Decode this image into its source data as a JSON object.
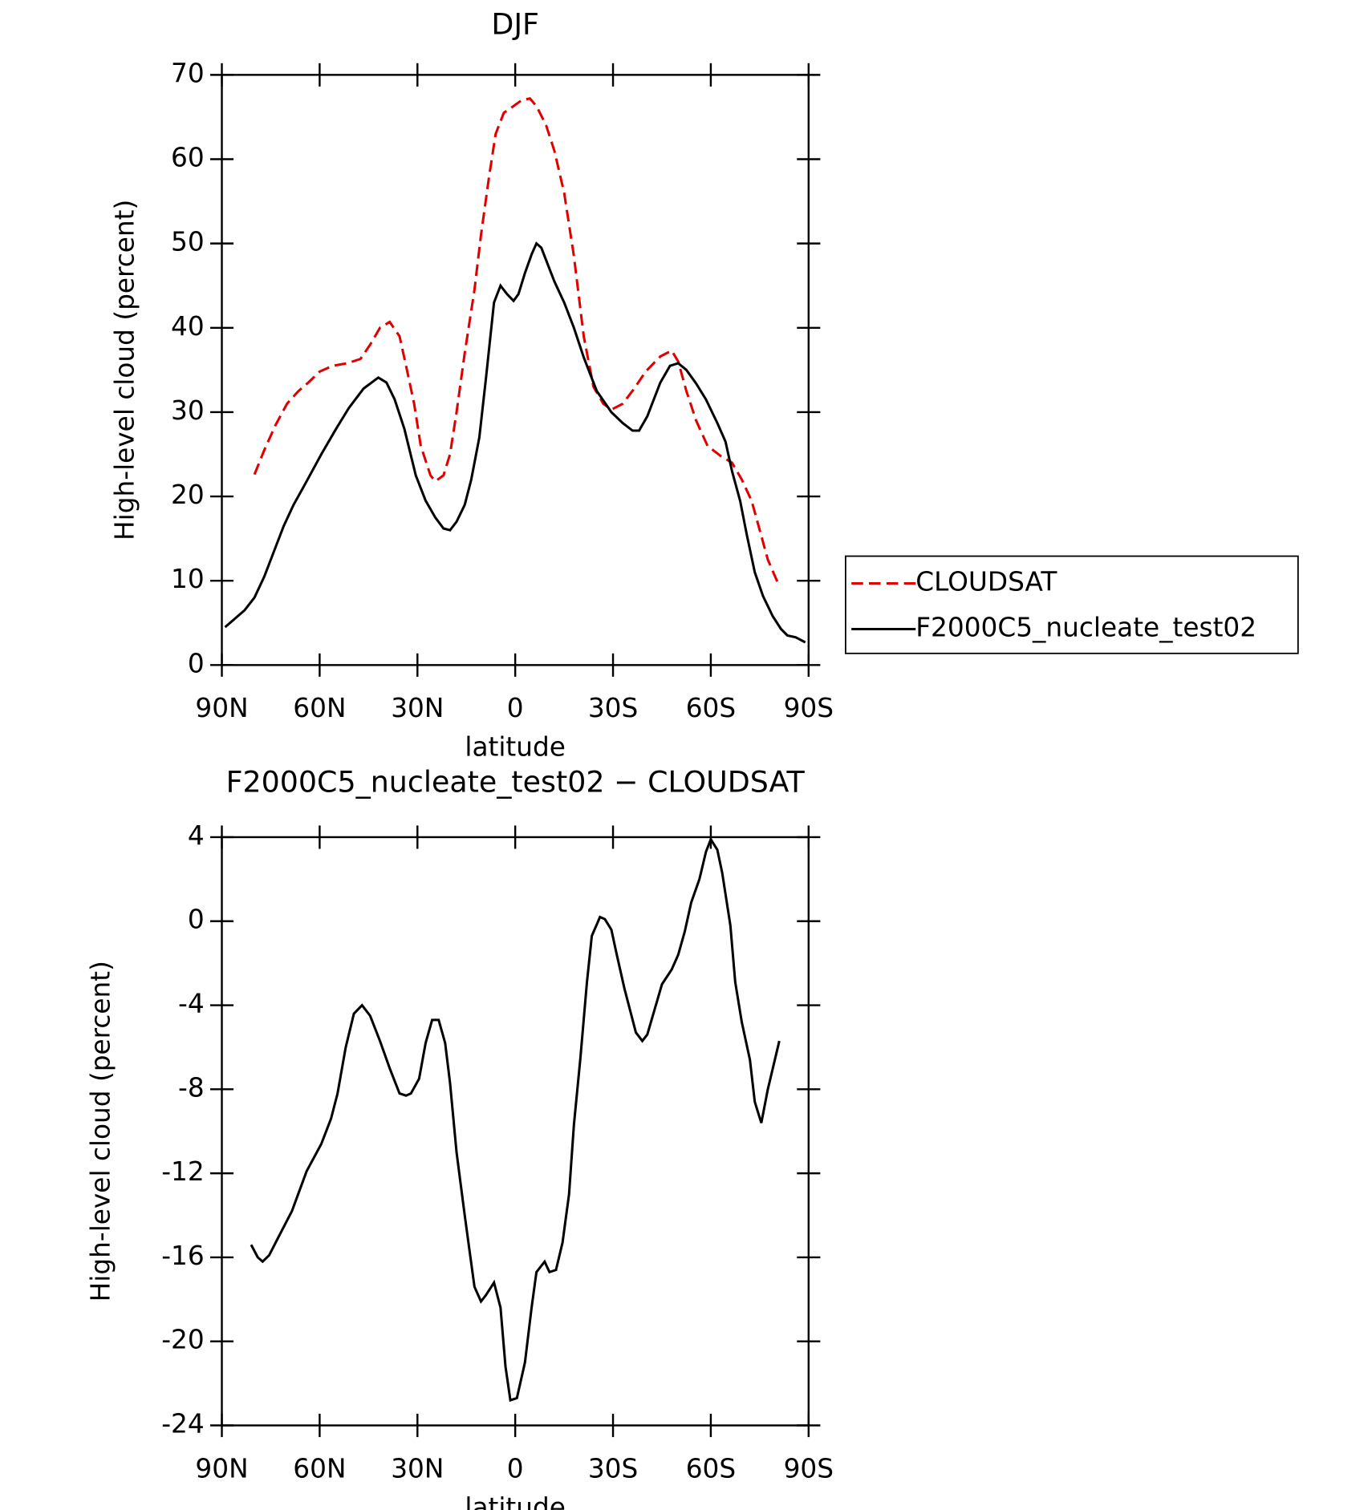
{
  "chart_data": [
    {
      "type": "line",
      "title": "DJF",
      "x_label": "latitude",
      "y_label": "High-level cloud (percent)",
      "xlim": [
        90,
        -90
      ],
      "xticks": [
        {
          "value": 90,
          "label": "90N"
        },
        {
          "value": 60,
          "label": "60N"
        },
        {
          "value": 30,
          "label": "30N"
        },
        0,
        {
          "value": -30,
          "label": "30S"
        },
        {
          "value": -60,
          "label": "60S"
        },
        {
          "value": -90,
          "label": "90S"
        }
      ],
      "ylim": [
        0,
        70
      ],
      "yticks": [
        0,
        10,
        20,
        30,
        40,
        50,
        60,
        70
      ],
      "legend": "right",
      "series": [
        {
          "name": "CLOUDSAT",
          "color": "#e00000",
          "dash": true,
          "x": [
            80,
            77,
            73.5,
            70,
            66.5,
            63.5,
            60,
            56,
            51.5,
            47.5,
            44.5,
            41.5,
            38.5,
            35.5,
            33.5,
            31,
            29,
            26,
            24.5,
            22,
            20,
            18,
            15.5,
            12.5,
            10.5,
            8,
            6,
            3.5,
            0.5,
            -2,
            -4.5,
            -6.5,
            -9.5,
            -12,
            -15,
            -18,
            -21,
            -24,
            -27,
            -29.5,
            -33,
            -36.5,
            -40,
            -44.5,
            -48,
            -50,
            -52.5,
            -55.5,
            -59,
            -63,
            -66.5,
            -69.5,
            -72.5,
            -75,
            -77.5,
            -80.5
          ],
          "values": [
            22.6,
            25.5,
            28.5,
            31,
            32.5,
            33.5,
            34.8,
            35.5,
            35.8,
            36.3,
            38,
            40,
            40.7,
            39,
            35.5,
            31,
            26,
            22.5,
            21.8,
            22.5,
            25,
            30,
            37,
            44.5,
            51,
            58,
            63,
            65.5,
            66.3,
            67,
            67.2,
            66.3,
            64,
            61,
            56,
            48.5,
            39,
            33,
            31,
            30.3,
            31,
            32.8,
            34.8,
            36.6,
            37.3,
            36,
            32.5,
            29,
            26,
            24.8,
            24,
            22,
            19.5,
            16,
            12.5,
            9.8
          ]
        },
        {
          "name": "F2000C5_nucleate_test02",
          "color": "#000000",
          "dash": false,
          "x": [
            89,
            86,
            83,
            80,
            77,
            74,
            71,
            68,
            64,
            59.5,
            55,
            51,
            46.5,
            42,
            39.5,
            37,
            34,
            30.5,
            27.5,
            24.5,
            22,
            20,
            18,
            15.5,
            13.5,
            11,
            9,
            6.5,
            4.5,
            2.5,
            0.5,
            -1,
            -3,
            -5,
            -6.5,
            -8,
            -10,
            -12,
            -15,
            -18,
            -21,
            -25,
            -29.5,
            -33,
            -36,
            -38,
            -40.5,
            -44.5,
            -47.5,
            -50,
            -52.5,
            -55.5,
            -58.5,
            -62,
            -64.5,
            -66.5,
            -69,
            -71,
            -73.5,
            -76,
            -79,
            -81.5,
            -83.5,
            -86,
            -89
          ],
          "values": [
            4.5,
            5.5,
            6.5,
            8,
            10.5,
            13.5,
            16.5,
            19,
            21.8,
            25,
            28,
            30.5,
            32.8,
            34.1,
            33.5,
            31.5,
            28,
            22.5,
            19.5,
            17.5,
            16.2,
            16,
            17,
            19,
            22,
            27,
            34,
            43,
            45,
            44,
            43.2,
            44,
            46.5,
            48.7,
            50,
            49.5,
            47.5,
            45.5,
            43,
            40,
            36.5,
            32.5,
            30,
            28.7,
            27.8,
            27.8,
            29.5,
            33.5,
            35.5,
            35.8,
            35,
            33.4,
            31.5,
            28.7,
            26.5,
            23,
            19.5,
            15.5,
            11,
            8.2,
            5.8,
            4.3,
            3.5,
            3.3,
            2.7
          ]
        }
      ]
    },
    {
      "type": "line",
      "title": "F2000C5_nucleate_test02 − CLOUDSAT",
      "x_label": "latitude",
      "y_label": "High-level cloud (percent)",
      "xlim": [
        90,
        -90
      ],
      "xticks": [
        {
          "value": 90,
          "label": "90N"
        },
        {
          "value": 60,
          "label": "60N"
        },
        {
          "value": 30,
          "label": "30N"
        },
        0,
        {
          "value": -30,
          "label": "30S"
        },
        {
          "value": -60,
          "label": "60S"
        },
        {
          "value": -90,
          "label": "90S"
        }
      ],
      "ylim": [
        -24,
        4
      ],
      "yticks": [
        -24,
        -20,
        -16,
        -12,
        -8,
        -4,
        0,
        4
      ],
      "series": [
        {
          "color": "#000000",
          "dash": false,
          "x": [
            81,
            79,
            77.5,
            75.5,
            72.5,
            68.5,
            64,
            59.5,
            56.5,
            54.5,
            52,
            49.5,
            47,
            44.5,
            41.5,
            38.5,
            35.5,
            33.5,
            32,
            29.5,
            27.5,
            25.5,
            23.5,
            21.5,
            20,
            18,
            15.5,
            14,
            12.5,
            10.5,
            9,
            6.5,
            4.5,
            3,
            1.5,
            -0.5,
            -3,
            -5,
            -6.5,
            -9,
            -10.5,
            -12.5,
            -14.5,
            -16.5,
            -18,
            -20,
            -22,
            -23.5,
            -26,
            -27.5,
            -29.5,
            -31,
            -33.5,
            -37,
            -39,
            -40.5,
            -45,
            -48,
            -50,
            -52,
            -54,
            -56.5,
            -58.5,
            -60,
            -62,
            -63.5,
            -66,
            -67.5,
            -69.5,
            -72,
            -73.5,
            -75.5,
            -77.5,
            -81
          ],
          "values": [
            -15.4,
            -16,
            -16.2,
            -15.9,
            -15,
            -13.8,
            -11.9,
            -10.6,
            -9.4,
            -8.2,
            -6,
            -4.4,
            -4,
            -4.5,
            -5.7,
            -7,
            -8.2,
            -8.3,
            -8.2,
            -7.5,
            -5.8,
            -4.7,
            -4.7,
            -5.8,
            -7.7,
            -11,
            -14,
            -15.7,
            -17.4,
            -18.1,
            -17.8,
            -17.2,
            -18.4,
            -21.2,
            -22.8,
            -22.7,
            -21,
            -18.4,
            -16.7,
            -16.2,
            -16.7,
            -16.6,
            -15.3,
            -13,
            -9.7,
            -6.5,
            -2.9,
            -0.7,
            0.2,
            0.1,
            -0.4,
            -1.5,
            -3.2,
            -5.3,
            -5.7,
            -5.4,
            -3,
            -2.3,
            -1.6,
            -0.5,
            0.9,
            2,
            3.3,
            3.9,
            3.4,
            2.3,
            -0.2,
            -2.9,
            -4.8,
            -6.6,
            -8.6,
            -9.6,
            -8,
            -5.7
          ]
        }
      ]
    }
  ]
}
